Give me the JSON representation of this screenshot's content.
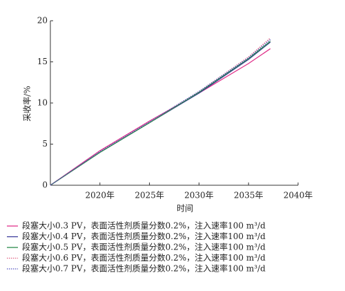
{
  "chart_data": {
    "type": "line",
    "x_label": "时间",
    "y_label": "采收率/%",
    "x": [
      2015,
      2020,
      2025,
      2030,
      2035,
      2037.2
    ],
    "series": [
      {
        "name": "段塞大小0.3 PV，表面活性剂质量分数0.2%，注入速率100 m³/d",
        "color": "#e0308a",
        "style": "solid",
        "values": [
          0,
          4.2,
          7.8,
          11.2,
          14.8,
          16.6
        ]
      },
      {
        "name": "段塞大小0.4 PV，表面活性剂质量分数0.2%，注入速率100 m³/d",
        "color": "#3a3a9a",
        "style": "solid",
        "values": [
          0,
          4.0,
          7.6,
          11.2,
          15.3,
          17.4
        ]
      },
      {
        "name": "段塞大小0.5 PV，表面活性剂质量分数0.2%，注入速率100 m³/d",
        "color": "#2a8a4a",
        "style": "solid",
        "values": [
          0,
          4.0,
          7.6,
          11.3,
          15.4,
          17.5
        ]
      },
      {
        "name": "段塞大小0.6 PV，表面活性剂质量分数0.2%，注入速率100 m³/d",
        "color": "#e06080",
        "style": "dotted",
        "values": [
          0,
          4.1,
          7.7,
          11.4,
          15.6,
          17.9
        ]
      },
      {
        "name": "段塞大小0.7 PV，表面活性剂质量分数0.2%，注入速率100 m³/d",
        "color": "#5050c0",
        "style": "dotted",
        "values": [
          0,
          4.1,
          7.7,
          11.4,
          15.5,
          17.7
        ]
      }
    ],
    "xlim": [
      2015,
      2040
    ],
    "xticks": [
      {
        "value": 2020,
        "label": "2020年"
      },
      {
        "value": 2025,
        "label": "2025年"
      },
      {
        "value": 2030,
        "label": "2030年"
      },
      {
        "value": 2035,
        "label": "2035年"
      },
      {
        "value": 2040,
        "label": "2040年"
      }
    ],
    "ylim": [
      0,
      20
    ],
    "yticks": [
      0,
      5,
      10,
      15,
      20
    ],
    "grid": false
  }
}
